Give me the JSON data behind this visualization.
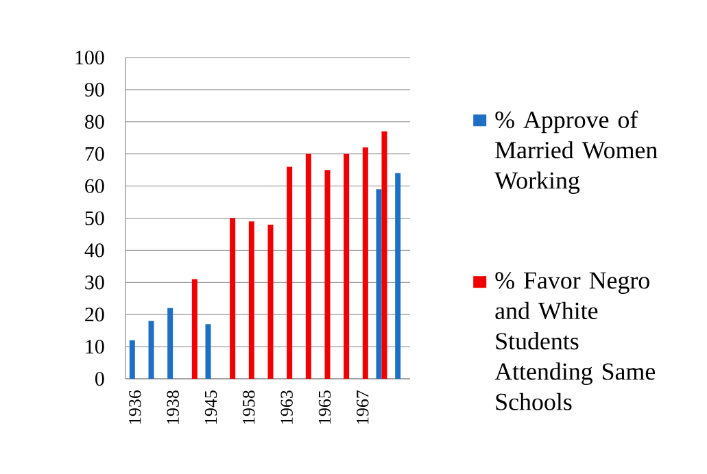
{
  "chart_data": {
    "type": "bar",
    "categories": [
      "1936",
      null,
      "1938",
      null,
      "1945",
      null,
      "1958",
      null,
      "1963",
      null,
      "1965",
      null,
      "1967",
      null,
      null
    ],
    "series": [
      {
        "name": "% Approve of Married Women Working",
        "color": "#1f6fc5",
        "values": [
          12,
          18,
          22,
          null,
          17,
          null,
          null,
          null,
          null,
          null,
          null,
          null,
          null,
          59,
          64
        ]
      },
      {
        "name": "% Favor Negro and White Students Attending Same Schools",
        "color": "#f00000",
        "values": [
          null,
          null,
          null,
          31,
          null,
          50,
          49,
          48,
          66,
          70,
          65,
          70,
          72,
          77,
          null
        ]
      }
    ],
    "ylim": [
      0,
      100
    ],
    "yticks": [
      0,
      10,
      20,
      30,
      40,
      50,
      60,
      70,
      80,
      90,
      100
    ],
    "grid": "y",
    "legend": "right"
  }
}
